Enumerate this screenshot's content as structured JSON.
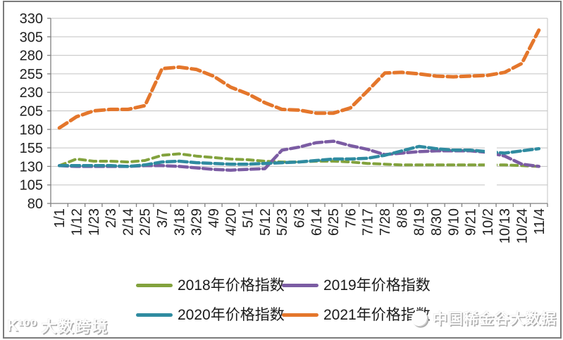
{
  "chart_data": {
    "type": "line",
    "title": "",
    "xlabel": "",
    "ylabel": "",
    "grid": true,
    "legend_position": "bottom",
    "ylim": [
      80,
      330
    ],
    "ytick_step": 25,
    "ytick_labels": [
      "80",
      "105",
      "130",
      "155",
      "180",
      "205",
      "230",
      "255",
      "280",
      "305",
      "330"
    ],
    "x_categories": [
      "1/1",
      "1/12",
      "1/23",
      "2/3",
      "2/14",
      "2/25",
      "3/7",
      "3/18",
      "3/29",
      "4/9",
      "4/20",
      "5/1",
      "5/12",
      "5/23",
      "6/3",
      "6/14",
      "6/25",
      "7/6",
      "7/17",
      "7/28",
      "8/8",
      "8/19",
      "8/30",
      "9/10",
      "9/21",
      "10/2",
      "10/13",
      "10/24",
      "11/4"
    ],
    "series": [
      {
        "name": "2018年价格指数",
        "color": "#82A23D",
        "dash": [
          9,
          6
        ],
        "width": 4,
        "values": [
          131,
          140,
          137,
          137,
          136,
          138,
          145,
          147,
          144,
          142,
          140,
          139,
          137,
          136,
          136,
          137,
          137,
          136,
          134,
          133,
          132,
          132,
          132,
          132,
          132,
          132,
          132,
          131,
          130
        ]
      },
      {
        "name": "2019年价格指数",
        "color": "#7B5CA3",
        "dash": [
          12,
          5
        ],
        "width": 4.5,
        "values": [
          131,
          130,
          130,
          130,
          130,
          131,
          131,
          130,
          128,
          126,
          125,
          126,
          127,
          152,
          156,
          162,
          164,
          158,
          153,
          146,
          148,
          150,
          151,
          151,
          151,
          149,
          144,
          133,
          130
        ]
      },
      {
        "name": "2020年价格指数",
        "color": "#2F8BA0",
        "dash": [
          12,
          5
        ],
        "width": 4.5,
        "values": [
          131,
          131,
          131,
          131,
          130,
          132,
          136,
          137,
          135,
          134,
          133,
          133,
          134,
          135,
          136,
          138,
          140,
          140,
          141,
          145,
          151,
          157,
          154,
          152,
          152,
          150,
          148,
          151,
          154
        ]
      },
      {
        "name": "2021年价格指数",
        "color": "#E4762B",
        "dash": [
          13,
          6
        ],
        "width": 5,
        "values": [
          182,
          197,
          205,
          207,
          207,
          212,
          262,
          264,
          261,
          252,
          237,
          228,
          216,
          207,
          206,
          202,
          202,
          209,
          232,
          256,
          257,
          255,
          252,
          251,
          252,
          253,
          257,
          269,
          314
        ]
      }
    ],
    "axis_color": "#7f7f7f",
    "grid_color": "#c3c3c3",
    "label_color": "#1f1f1f"
  },
  "watermarks": {
    "bottom_left": {
      "logo": "K¹⁰⁰",
      "text": "大数跨境"
    },
    "bottom_right": {
      "text": "中国稀金谷大数据"
    }
  }
}
